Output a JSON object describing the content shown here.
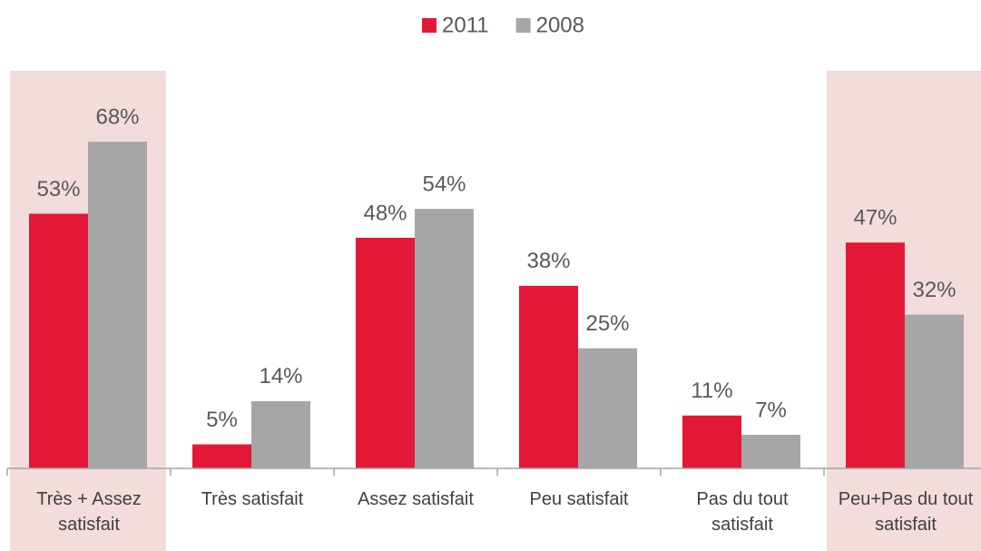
{
  "chart_data": {
    "type": "bar",
    "categories": [
      "Très + Assez satisfait",
      "Très satisfait",
      "Assez satisfait",
      "Peu satisfait",
      "Pas du tout satisfait",
      "Peu+Pas du tout satisfait"
    ],
    "series": [
      {
        "name": "2011",
        "color": "#e31837",
        "values": [
          53,
          5,
          48,
          38,
          11,
          47
        ],
        "value_labels": [
          "53%",
          "5%",
          "48%",
          "38%",
          "11%",
          "47%"
        ]
      },
      {
        "name": "2008",
        "color": "#a6a6a6",
        "values": [
          68,
          14,
          54,
          25,
          7,
          32
        ],
        "value_labels": [
          "68%",
          "14%",
          "54%",
          "25%",
          "7%",
          "32%"
        ]
      }
    ],
    "ylim": [
      0,
      75
    ],
    "highlighted": [
      0,
      5
    ],
    "highlight_color": "#f2dcdc",
    "legend": "top"
  }
}
